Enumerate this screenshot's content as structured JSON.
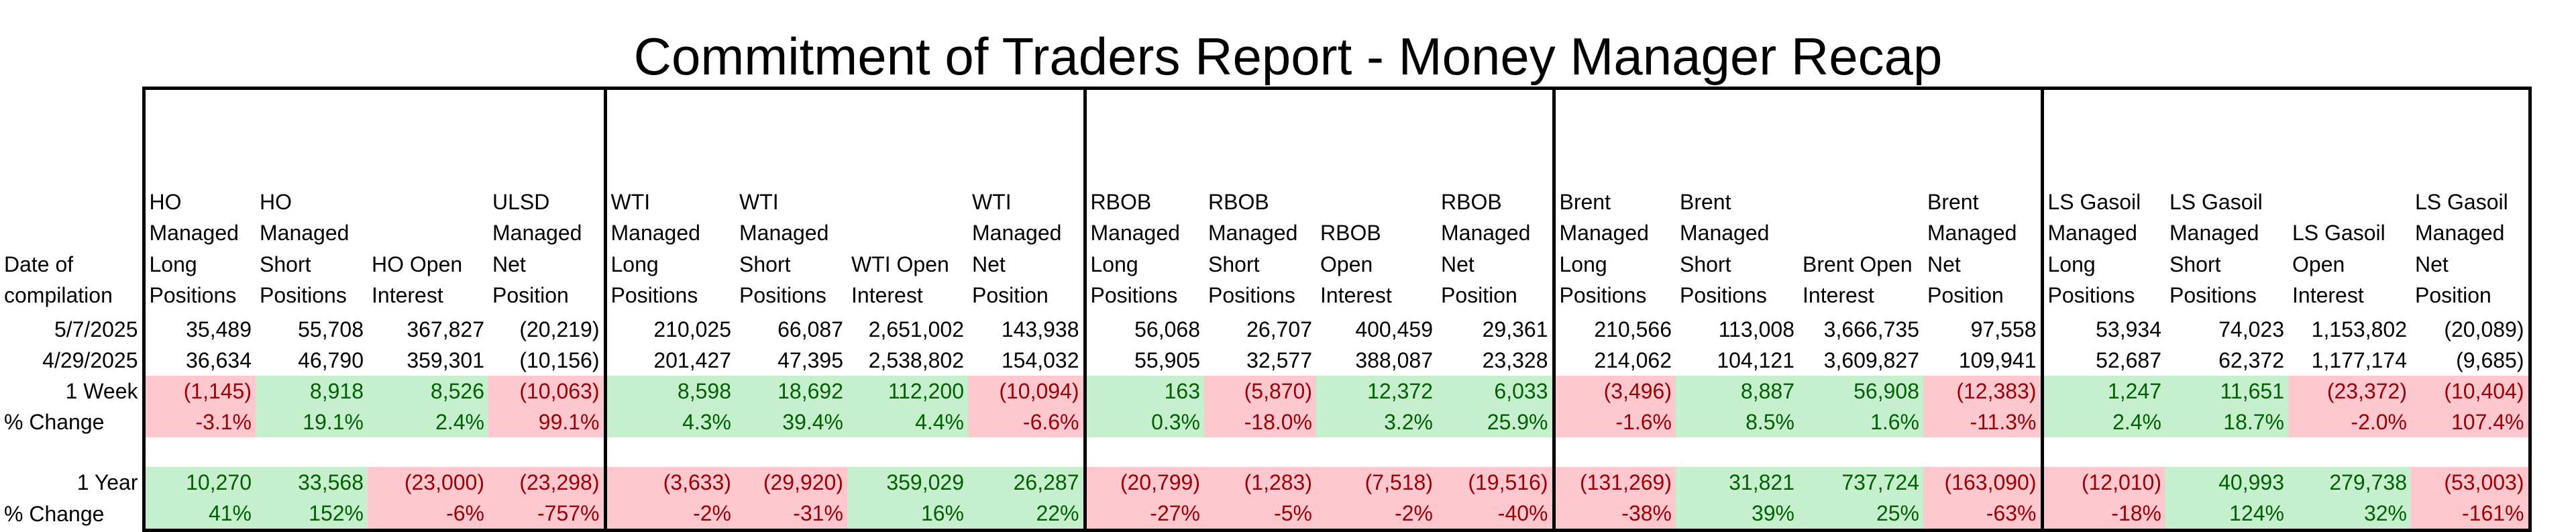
{
  "title": "Commitment of Traders Report - Money Manager Recap",
  "groups": [
    4,
    4,
    4,
    4,
    4
  ],
  "header": {
    "label": "Date of compilation",
    "columns": [
      "HO Managed Long Positions",
      "HO Managed Short Positions",
      "HO Open Interest",
      "ULSD Managed Net Position",
      "WTI Managed Long Positions",
      "WTI Managed Short Positions",
      "WTI Open Interest",
      "WTI Managed Net Position",
      "RBOB Managed Long Positions",
      "RBOB Managed Short Positions",
      "RBOB Open Interest",
      "RBOB Managed Net Position",
      "Brent Managed Long Positions",
      "Brent Managed Short Positions",
      "Brent Open Interest",
      "Brent Managed Net Position",
      "LS Gasoil Managed Long Positions",
      "LS Gasoil Managed Short Positions",
      "LS Gasoil Open Interest",
      "LS Gasoil Managed Net Position"
    ]
  },
  "rows": [
    {
      "label": "5/7/2025",
      "values": [
        "35,489",
        "55,708",
        "367,827",
        "(20,219)",
        "210,025",
        "66,087",
        "2,651,002",
        "143,938",
        "56,068",
        "26,707",
        "400,459",
        "29,361",
        "210,566",
        "113,008",
        "3,666,735",
        "97,558",
        "53,934",
        "74,023",
        "1,153,802",
        "(20,089)"
      ],
      "signs": []
    },
    {
      "label": "4/29/2025",
      "values": [
        "36,634",
        "46,790",
        "359,301",
        "(10,156)",
        "201,427",
        "47,395",
        "2,538,802",
        "154,032",
        "55,905",
        "32,577",
        "388,087",
        "23,328",
        "214,062",
        "104,121",
        "3,609,827",
        "109,941",
        "52,687",
        "62,372",
        "1,177,174",
        "(9,685)"
      ],
      "signs": []
    },
    {
      "label": "1 Week",
      "values": [
        "(1,145)",
        "8,918",
        "8,526",
        "(10,063)",
        "8,598",
        "18,692",
        "112,200",
        "(10,094)",
        "163",
        "(5,870)",
        "12,372",
        "6,033",
        "(3,496)",
        "8,887",
        "56,908",
        "(12,383)",
        "1,247",
        "11,651",
        "(23,372)",
        "(10,404)"
      ],
      "signs": [
        "n",
        "p",
        "p",
        "n",
        "p",
        "p",
        "p",
        "n",
        "p",
        "n",
        "p",
        "p",
        "n",
        "p",
        "p",
        "n",
        "p",
        "p",
        "n",
        "n"
      ]
    },
    {
      "label": "% Change",
      "values": [
        "-3.1%",
        "19.1%",
        "2.4%",
        "99.1%",
        "4.3%",
        "39.4%",
        "4.4%",
        "-6.6%",
        "0.3%",
        "-18.0%",
        "3.2%",
        "25.9%",
        "-1.6%",
        "8.5%",
        "1.6%",
        "-11.3%",
        "2.4%",
        "18.7%",
        "-2.0%",
        "107.4%"
      ],
      "signs": [
        "n",
        "p",
        "p",
        "n",
        "p",
        "p",
        "p",
        "n",
        "p",
        "n",
        "p",
        "p",
        "n",
        "p",
        "p",
        "n",
        "p",
        "p",
        "n",
        "n"
      ]
    },
    {
      "gap": true
    },
    {
      "label": "1 Year",
      "values": [
        "10,270",
        "33,568",
        "(23,000)",
        "(23,298)",
        "(3,633)",
        "(29,920)",
        "359,029",
        "26,287",
        "(20,799)",
        "(1,283)",
        "(7,518)",
        "(19,516)",
        "(131,269)",
        "31,821",
        "737,724",
        "(163,090)",
        "(12,010)",
        "40,993",
        "279,738",
        "(53,003)"
      ],
      "signs": [
        "p",
        "p",
        "n",
        "n",
        "n",
        "n",
        "p",
        "p",
        "n",
        "n",
        "n",
        "n",
        "n",
        "p",
        "p",
        "n",
        "n",
        "p",
        "p",
        "n"
      ]
    },
    {
      "label": "% Change",
      "values": [
        "41%",
        "152%",
        "-6%",
        "-757%",
        "-2%",
        "-31%",
        "16%",
        "22%",
        "-27%",
        "-5%",
        "-2%",
        "-40%",
        "-38%",
        "39%",
        "25%",
        "-63%",
        "-18%",
        "124%",
        "32%",
        "-161%"
      ],
      "signs": [
        "p",
        "p",
        "n",
        "n",
        "n",
        "n",
        "p",
        "p",
        "n",
        "n",
        "n",
        "n",
        "n",
        "p",
        "p",
        "n",
        "n",
        "p",
        "p",
        "n"
      ]
    }
  ]
}
